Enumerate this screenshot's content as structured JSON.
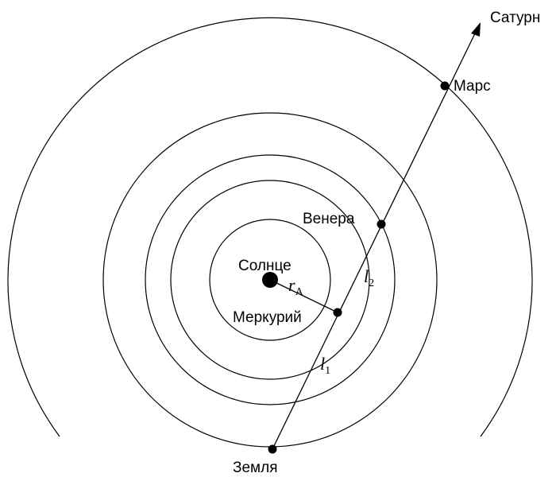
{
  "labels": {
    "sun": "Солнце",
    "mercury": "Меркурий",
    "venus": "Венера",
    "earth": "Земля",
    "mars": "Марс",
    "saturn": "Сатурн",
    "radius": "r",
    "radius_sub": "A",
    "l1": "l",
    "l1_sub": "1",
    "l2": "l",
    "l2_sub": "2"
  }
}
